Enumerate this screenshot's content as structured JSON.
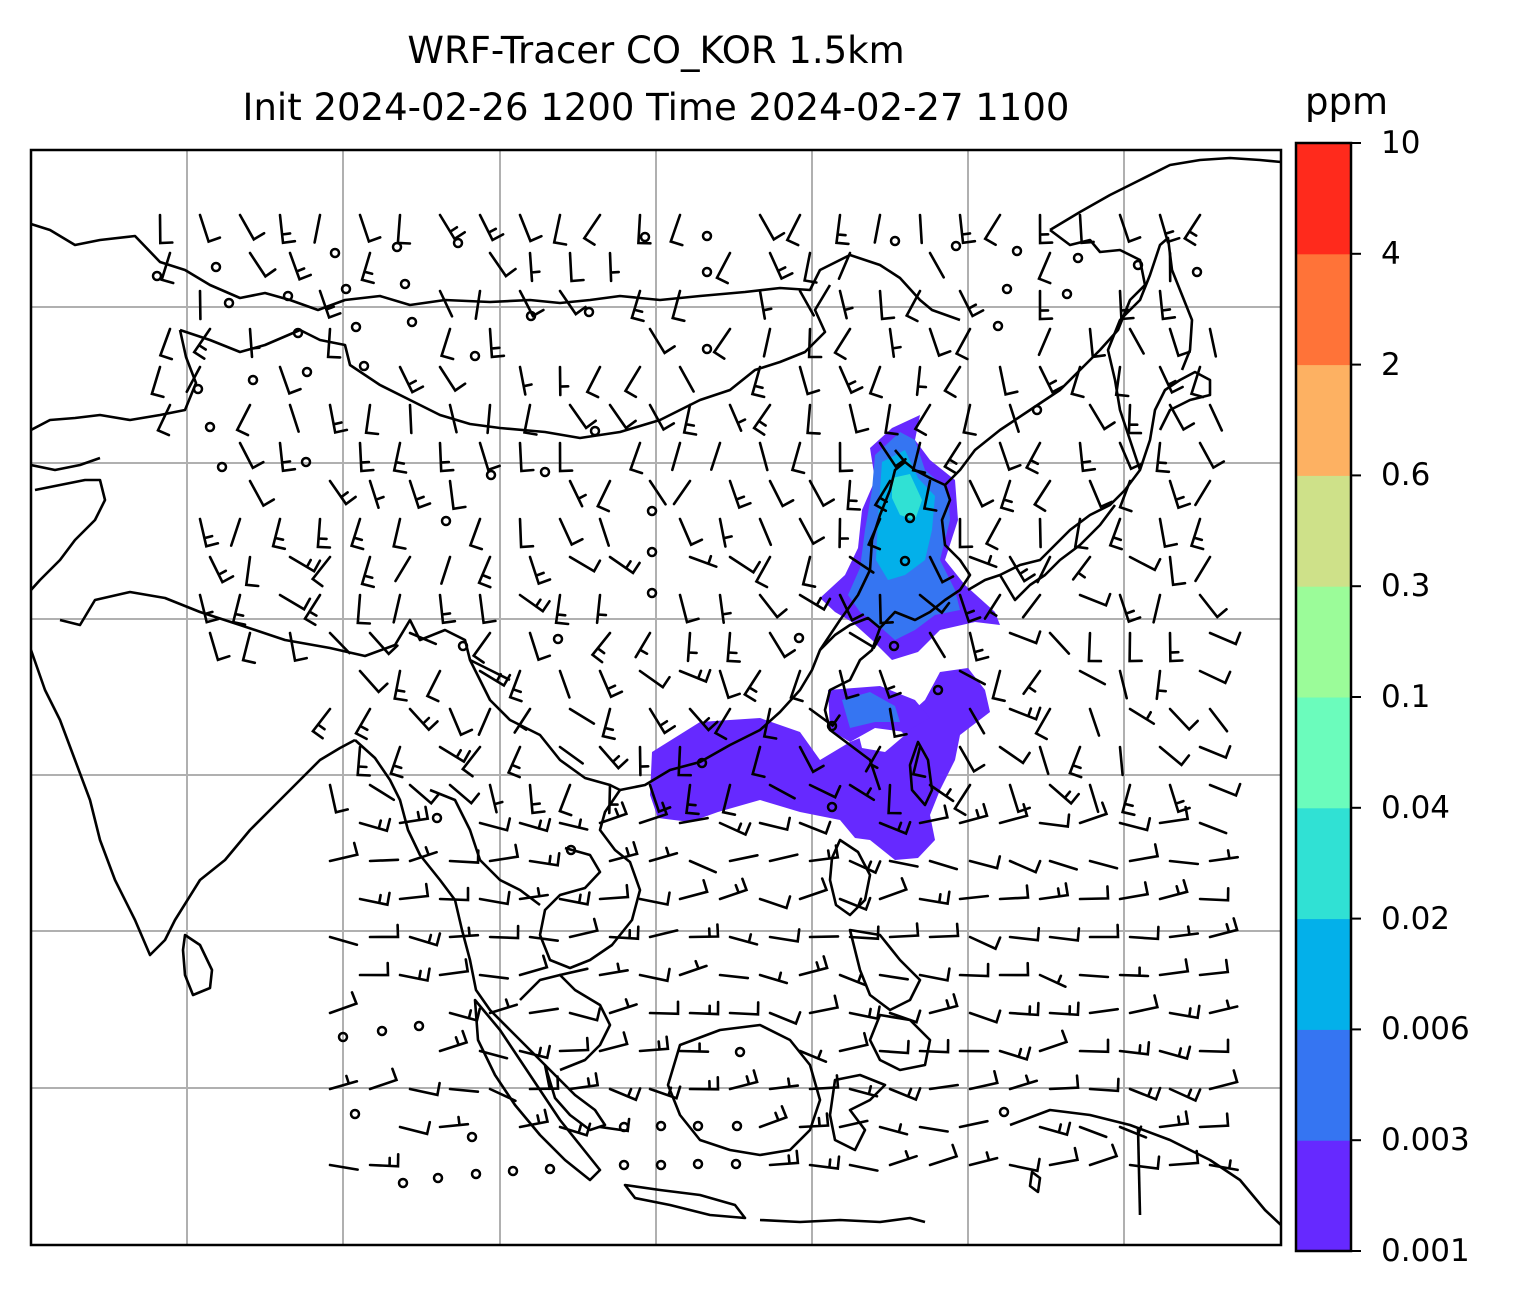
{
  "title": {
    "line1": "WRF-Tracer CO_KOR 1.5km",
    "line2": "Init 2024-02-26 1200 Time 2024-02-27 1100"
  },
  "colorbar": {
    "unit": "ppm",
    "levels": [
      "0.001",
      "0.003",
      "0.006",
      "0.02",
      "0.04",
      "0.1",
      "0.3",
      "0.6",
      "2",
      "4",
      "10"
    ],
    "colors": [
      "#6629ff",
      "#3575f2",
      "#03b0ea",
      "#30e1d4",
      "#6bfcbc",
      "#9bfc99",
      "#cee189",
      "#fdb162",
      "#ff7338",
      "#ff2a1c"
    ]
  },
  "map": {
    "coastline_color": "#000000",
    "gridline_color": "#b0b0b0",
    "wind_barb_color": "#000000",
    "plume_colors": {
      "outer": "#6629ff",
      "inner": "#3575f2",
      "core": "#03b0ea",
      "peak": "#30e1d4"
    }
  }
}
